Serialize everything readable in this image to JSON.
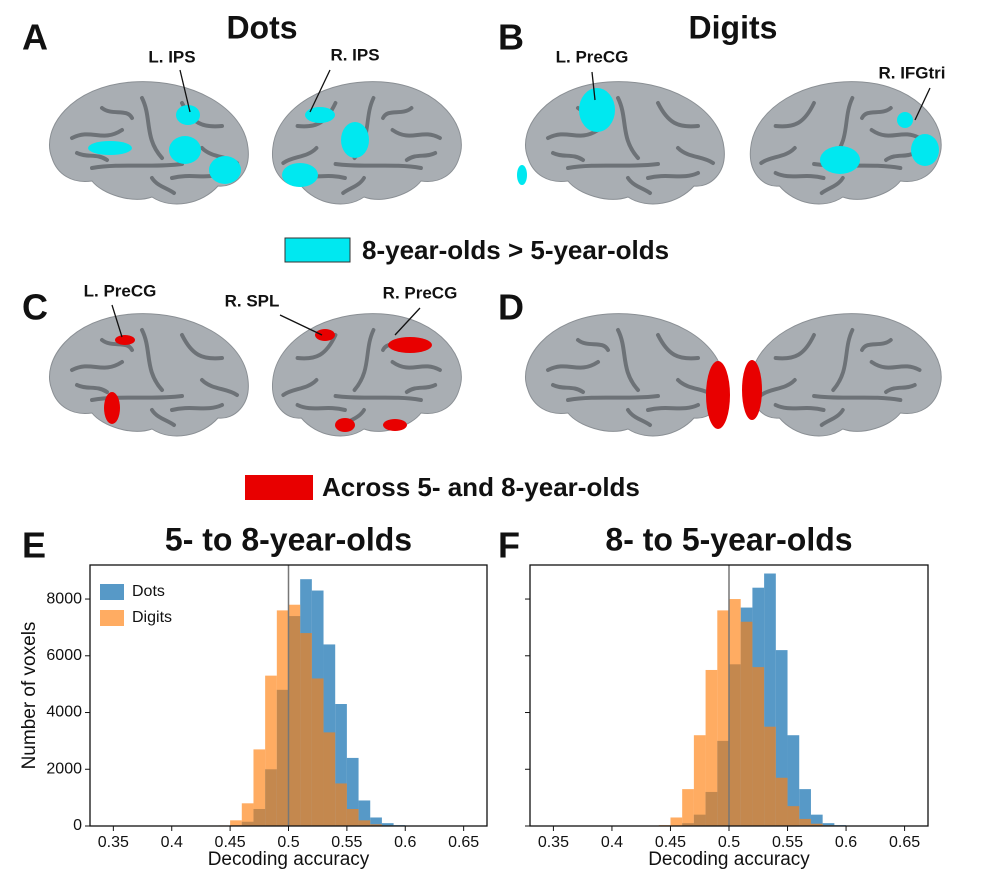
{
  "figure": {
    "labels": [
      "A",
      "B",
      "C",
      "D",
      "E",
      "F"
    ],
    "titles": [
      "Dots",
      "Digits"
    ],
    "annotations": [
      "L. IPS",
      "R. IPS",
      "L. PreCG",
      "R. IFGtri",
      "L. PreCG",
      "R. SPL",
      "R. PreCG"
    ],
    "legends": [
      {
        "label": "8-year-olds > 5-year-olds",
        "color": "#00e8f0"
      },
      {
        "label": "Across 5- and 8-year-olds",
        "color": "#e80000"
      }
    ]
  },
  "chart_data": [
    {
      "type": "histogram",
      "title": "5- to 8-year-olds",
      "xlabel": "Decoding accuracy",
      "ylabel": "Number of voxels",
      "bins": [
        0.44,
        0.45,
        0.46,
        0.47,
        0.48,
        0.49,
        0.5,
        0.51,
        0.52,
        0.53,
        0.54,
        0.55,
        0.56,
        0.57,
        0.58,
        0.59,
        0.6,
        0.61,
        0.62
      ],
      "series": [
        {
          "name": "Dots",
          "color": "#1f77b4",
          "values": [
            0,
            30,
            150,
            600,
            2000,
            4800,
            7400,
            8700,
            8300,
            6400,
            4300,
            2400,
            900,
            300,
            100,
            30,
            10,
            0
          ]
        },
        {
          "name": "Digits",
          "color": "#ff7f0e",
          "values": [
            20,
            200,
            800,
            2700,
            5300,
            7600,
            7800,
            6800,
            5200,
            3300,
            1500,
            600,
            200,
            60,
            20,
            5,
            0,
            0
          ]
        }
      ],
      "xlim": [
        0.33,
        0.67
      ],
      "xticks": [
        0.35,
        0.4,
        0.45,
        0.5,
        0.55,
        0.6,
        0.65
      ],
      "ylim": [
        0,
        9200
      ],
      "yticks": [
        0,
        2000,
        4000,
        6000,
        8000
      ],
      "vline": 0.5,
      "legend": "upper left",
      "ytick_labels": true
    },
    {
      "type": "histogram",
      "title": "8- to 5-year-olds",
      "xlabel": "Decoding accuracy",
      "bins": [
        0.44,
        0.45,
        0.46,
        0.47,
        0.48,
        0.49,
        0.5,
        0.51,
        0.52,
        0.53,
        0.54,
        0.55,
        0.56,
        0.57,
        0.58,
        0.59,
        0.6,
        0.61,
        0.62
      ],
      "series": [
        {
          "color": "#1f77b4",
          "values": [
            0,
            20,
            100,
            400,
            1200,
            3000,
            5700,
            7700,
            8400,
            8900,
            6200,
            3200,
            1300,
            400,
            100,
            30,
            10,
            0
          ]
        },
        {
          "color": "#ff7f0e",
          "values": [
            30,
            300,
            1300,
            3200,
            5500,
            7600,
            8000,
            7200,
            5600,
            3500,
            1700,
            700,
            250,
            80,
            25,
            10,
            0,
            0
          ]
        }
      ],
      "xlim": [
        0.33,
        0.67
      ],
      "xticks": [
        0.35,
        0.4,
        0.45,
        0.5,
        0.55,
        0.6,
        0.65
      ],
      "ylim": [
        0,
        9200
      ],
      "yticks": [
        0,
        2000,
        4000,
        6000,
        8000
      ],
      "vline": 0.5,
      "ytick_labels": false
    }
  ]
}
